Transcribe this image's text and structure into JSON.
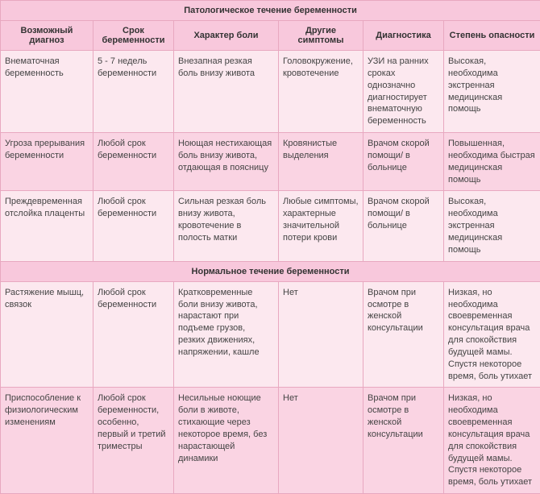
{
  "section1_title": "Патологическое течение беременности",
  "section2_title": "Нормальное течение беременности",
  "headers": {
    "h0": "Возможный диагноз",
    "h1": "Срок беременности",
    "h2": "Характер боли",
    "h3": "Другие симптомы",
    "h4": "Диагностика",
    "h5": "Степень опасности"
  },
  "s1": {
    "r0": {
      "c0": "Внематочная беременность",
      "c1": "5 - 7 недель беременности",
      "c2": "Внезапная резкая боль внизу живота",
      "c3": "Головокружение, кровотечение",
      "c4": "УЗИ на ранних сроках однозначно диагностирует внематочную беременность",
      "c5": "Высокая, необходима экстренная медицинская помощь"
    },
    "r1": {
      "c0": "Угроза прерывания беременности",
      "c1": "Любой срок беременности",
      "c2": "Ноющая нестихающая боль внизу живота, отдающая в поясницу",
      "c3": "Кровянистые выделения",
      "c4": "Врачом скорой помощи/ в больнице",
      "c5": "Повышенная, необходима быстрая медицинская помощь"
    },
    "r2": {
      "c0": "Преждевременная отслойка плаценты",
      "c1": "Любой срок беременности",
      "c2": "Сильная резкая боль внизу живота, кровотечение в полость матки",
      "c3": "Любые симптомы, характерные значительной потери крови",
      "c4": "Врачом скорой помощи/ в больнице",
      "c5": "Высокая, необходима экстренная медицинская помощь"
    }
  },
  "s2": {
    "r0": {
      "c0": "Растяжение мышц, связок",
      "c1": "Любой срок беременности",
      "c2": "Кратковременные боли внизу живота, нарастают при подъеме грузов, резких движениях, напряжении, кашле",
      "c3": "Нет",
      "c4": "Врачом при осмотре в женской консультации",
      "c5": "Низкая, но необходима своевременная консультация врача для спокойствия будущей мамы. Спустя некоторое время, боль утихает"
    },
    "r1": {
      "c0": "Приспособление к физиологическим изменениям",
      "c1": "Любой срок беременности, особенно, первый и третий триместры",
      "c2": "Несильные ноющие боли в животе, стихающие через некоторое время, без нарастающей динамики",
      "c3": "Нет",
      "c4": "Врачом при осмотре в женской консультации",
      "c5": "Низкая, но необходима своевременная консультация врача для спокойствия будущей мамы. Спустя некоторое время, боль утихает"
    }
  }
}
